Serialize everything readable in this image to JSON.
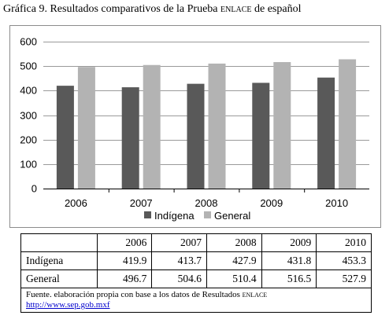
{
  "title": {
    "prefix": "Gráfica 9. Resultados comparativos de la Prueba ",
    "smallcaps": "enlace",
    "suffix": " de español"
  },
  "chart_data": {
    "type": "bar",
    "categories": [
      "2006",
      "2007",
      "2008",
      "2009",
      "2010"
    ],
    "series": [
      {
        "name": "Indígena",
        "values": [
          419.9,
          413.7,
          427.9,
          431.8,
          453.3
        ],
        "color": "#595959"
      },
      {
        "name": "General",
        "values": [
          496.7,
          504.6,
          510.4,
          516.5,
          527.9
        ],
        "color": "#b3b3b3"
      }
    ],
    "ylim": [
      0,
      600
    ],
    "yticks": [
      "0",
      "100",
      "200",
      "300",
      "400",
      "500",
      "600"
    ],
    "grid": true,
    "legend_position": "bottom"
  },
  "table": {
    "header": [
      "",
      "2006",
      "2007",
      "2008",
      "2009",
      "2010"
    ],
    "rows": [
      {
        "label": "Indígena",
        "values": [
          "419.9",
          "413.7",
          "427.9",
          "431.8",
          "453.3"
        ]
      },
      {
        "label": "General",
        "values": [
          "496.7",
          "504.6",
          "510.4",
          "516.5",
          "527.9"
        ]
      }
    ],
    "source_prefix": "Fuente. elaboración propia con base a los datos de Resultados ",
    "source_smallcaps": "enlace",
    "source_url": "http://www.sep.gob.mxf"
  }
}
